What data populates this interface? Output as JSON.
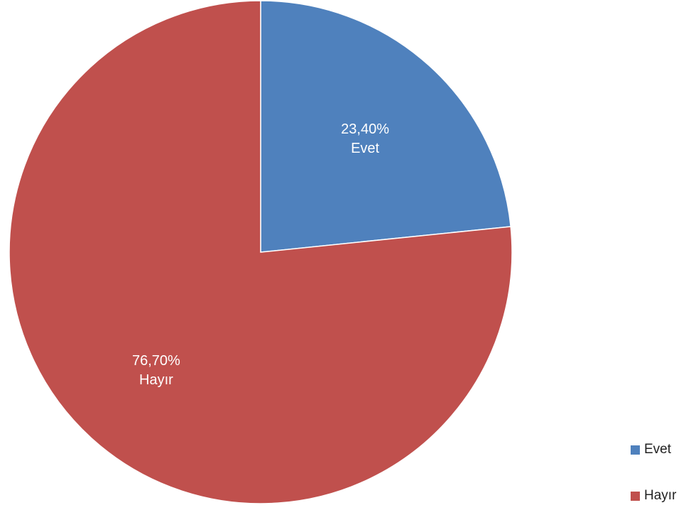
{
  "chart_data": {
    "type": "pie",
    "title": "",
    "categories": [
      "Evet",
      "Hayır"
    ],
    "values": [
      23.4,
      76.7
    ],
    "data_labels": [
      "23,40%",
      "76,70%"
    ],
    "colors": [
      "#4f81bd",
      "#c0504d"
    ],
    "legend_position": "bottom-right",
    "start_angle_deg": 0,
    "direction": "clockwise"
  },
  "legend": {
    "items": [
      {
        "label": "Evet",
        "color": "#4f81bd"
      },
      {
        "label": "Hayır",
        "color": "#c0504d"
      }
    ]
  }
}
